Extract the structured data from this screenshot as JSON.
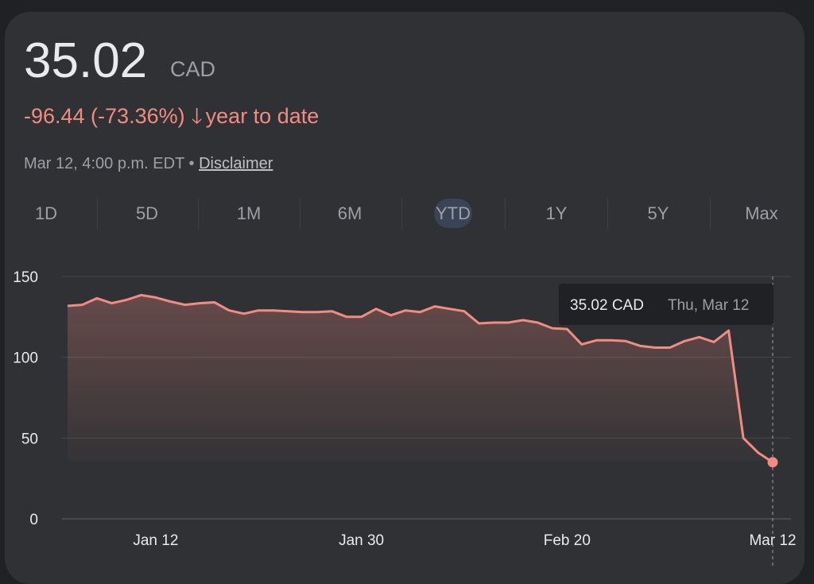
{
  "quote": {
    "price": "35.02",
    "currency": "CAD",
    "change": "-96.44 (-73.36%)",
    "change_arrow": "arrow-down-icon",
    "change_period": "year to date",
    "timestamp": "Mar 12, 4:00 p.m. EDT",
    "separator": "•",
    "disclaimer": "Disclaimer"
  },
  "ranges": [
    {
      "label": "1D"
    },
    {
      "label": "5D"
    },
    {
      "label": "1M"
    },
    {
      "label": "6M"
    },
    {
      "label": "YTD",
      "active": true
    },
    {
      "label": "1Y"
    },
    {
      "label": "5Y"
    },
    {
      "label": "Max"
    }
  ],
  "colors": {
    "line": "#f28b82",
    "background": "#303134",
    "page": "#202124"
  },
  "tooltip": {
    "value": "35.02 CAD",
    "date": "Thu, Mar 12"
  },
  "chart_data": {
    "type": "area",
    "ylim": [
      0,
      150
    ],
    "y_ticks": [
      "0",
      "50",
      "100",
      "150"
    ],
    "x_ticks": [
      {
        "label": "Jan 12",
        "index": 6
      },
      {
        "label": "Jan 30",
        "index": 20
      },
      {
        "label": "Feb 20",
        "index": 34
      },
      {
        "label": "Mar 12",
        "index": 48
      }
    ],
    "grid": true,
    "values": [
      131.8,
      132.5,
      136.5,
      133.5,
      135.5,
      138.5,
      137,
      134.5,
      132.5,
      133.5,
      134,
      129,
      127,
      129,
      129,
      128.5,
      128,
      128,
      128.5,
      125,
      125,
      130,
      126,
      129,
      128,
      131.5,
      130,
      128.5,
      121,
      121.5,
      121.5,
      123,
      121.5,
      118,
      117.5,
      108,
      110.5,
      110.5,
      110,
      107,
      106,
      106,
      110,
      112.5,
      109.5,
      116.5,
      50,
      41,
      35.02
    ]
  }
}
